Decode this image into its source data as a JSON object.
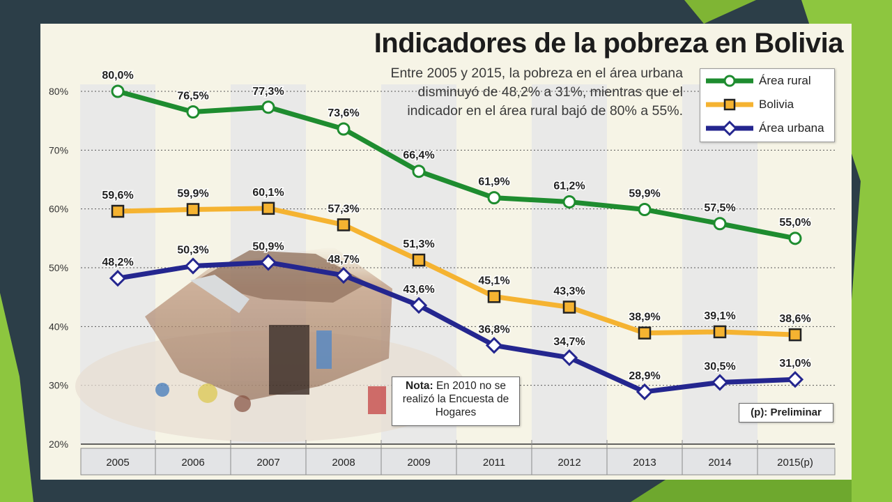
{
  "chart_data": {
    "type": "line",
    "title": "Indicadores de la pobreza en Bolivia",
    "subtitle": "Entre 2005 y 2015, la pobreza en el área urbana disminuyó de 48,2% a 31%, mientras que el indicador en el área rural bajó de 80% a 55%.",
    "categories": [
      "2005",
      "2006",
      "2007",
      "2008",
      "2009",
      "2011",
      "2012",
      "2013",
      "2014",
      "2015(p)"
    ],
    "ylim": [
      20,
      80
    ],
    "yticks": [
      "20%",
      "30%",
      "40%",
      "50%",
      "60%",
      "70%",
      "80%"
    ],
    "series": [
      {
        "name": "Área rural",
        "color": "#1e8c2f",
        "marker": "circle",
        "values": [
          80.0,
          76.5,
          77.3,
          73.6,
          66.4,
          61.9,
          61.2,
          59.9,
          57.5,
          55.0
        ],
        "labels": [
          "80,0%",
          "76,5%",
          "77,3%",
          "73,6%",
          "66,4%",
          "61,9%",
          "61,2%",
          "59,9%",
          "57,5%",
          "55,0%"
        ]
      },
      {
        "name": "Bolivia",
        "color": "#f5b331",
        "marker": "square",
        "values": [
          59.6,
          59.9,
          60.1,
          57.3,
          51.3,
          45.1,
          43.3,
          38.9,
          39.1,
          38.6
        ],
        "labels": [
          "59,6%",
          "59,9%",
          "60,1%",
          "57,3%",
          "51,3%",
          "45,1%",
          "43,3%",
          "38,9%",
          "39,1%",
          "38,6%"
        ]
      },
      {
        "name": "Área urbana",
        "color": "#24268f",
        "marker": "diamond",
        "values": [
          48.2,
          50.3,
          50.9,
          48.7,
          43.6,
          36.8,
          34.7,
          28.9,
          30.5,
          31.0
        ],
        "labels": [
          "48,2%",
          "50,3%",
          "50,9%",
          "48,7%",
          "43,6%",
          "36,8%",
          "34,7%",
          "28,9%",
          "30,5%",
          "31,0%"
        ]
      }
    ],
    "legend_position": "top-right",
    "grid": true,
    "annotations": {
      "note_label": "Nota:",
      "note_text": "En 2010 no se realizó la Encuesta de Hogares",
      "preliminary": "(p): Preliminar"
    }
  },
  "colors": {
    "slide_background": "#2c3e48",
    "slide_accent_green": "#8dc63f",
    "figure_background": "#f6f4e6"
  }
}
